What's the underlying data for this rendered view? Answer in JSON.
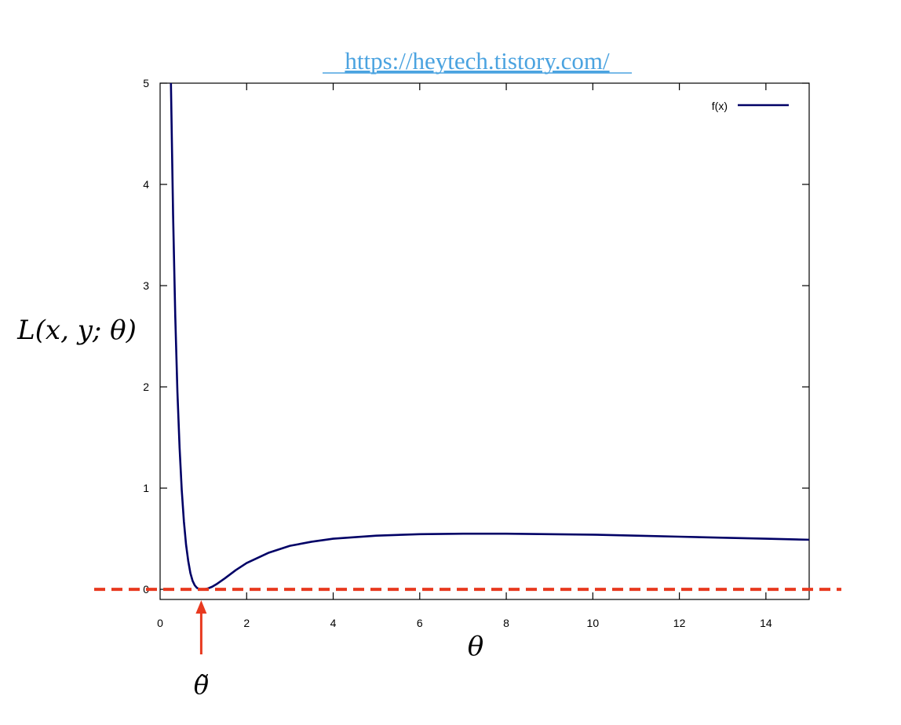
{
  "header": {
    "url_text": "https://heytech.tistory.com/"
  },
  "chart_data": {
    "type": "line",
    "xlabel": "θ",
    "ylabel": "L(x, y; θ)",
    "xlim": [
      0,
      15
    ],
    "ylim": [
      -0.1,
      5
    ],
    "x_ticks": [
      0,
      2,
      4,
      6,
      8,
      10,
      12,
      14
    ],
    "y_ticks": [
      0,
      1,
      2,
      3,
      4,
      5
    ],
    "grid": false,
    "legend_position": "top-right",
    "series": [
      {
        "name": "f(x)",
        "color": "#000066",
        "x": [
          0.25,
          0.3,
          0.35,
          0.4,
          0.45,
          0.5,
          0.55,
          0.6,
          0.65,
          0.7,
          0.75,
          0.8,
          0.85,
          0.9,
          0.95,
          1.0,
          1.1,
          1.2,
          1.3,
          1.5,
          1.75,
          2.0,
          2.5,
          3.0,
          3.5,
          4.0,
          5.0,
          6.0,
          7.0,
          8.0,
          9.0,
          10.0,
          11.0,
          12.0,
          13.0,
          14.0,
          15.0
        ],
        "y": [
          5.2,
          3.7,
          2.7,
          1.95,
          1.4,
          0.98,
          0.67,
          0.44,
          0.28,
          0.16,
          0.085,
          0.04,
          0.015,
          0.004,
          0.0005,
          0.0,
          0.008,
          0.025,
          0.05,
          0.11,
          0.19,
          0.26,
          0.36,
          0.43,
          0.47,
          0.5,
          0.53,
          0.545,
          0.55,
          0.55,
          0.545,
          0.54,
          0.53,
          0.52,
          0.51,
          0.5,
          0.49
        ]
      }
    ],
    "reference_line": {
      "y": 0,
      "color": "#e8391f",
      "style": "dashed"
    },
    "annotation": {
      "label": "θ̃",
      "x": 0.95,
      "color": "#e8391f"
    }
  }
}
